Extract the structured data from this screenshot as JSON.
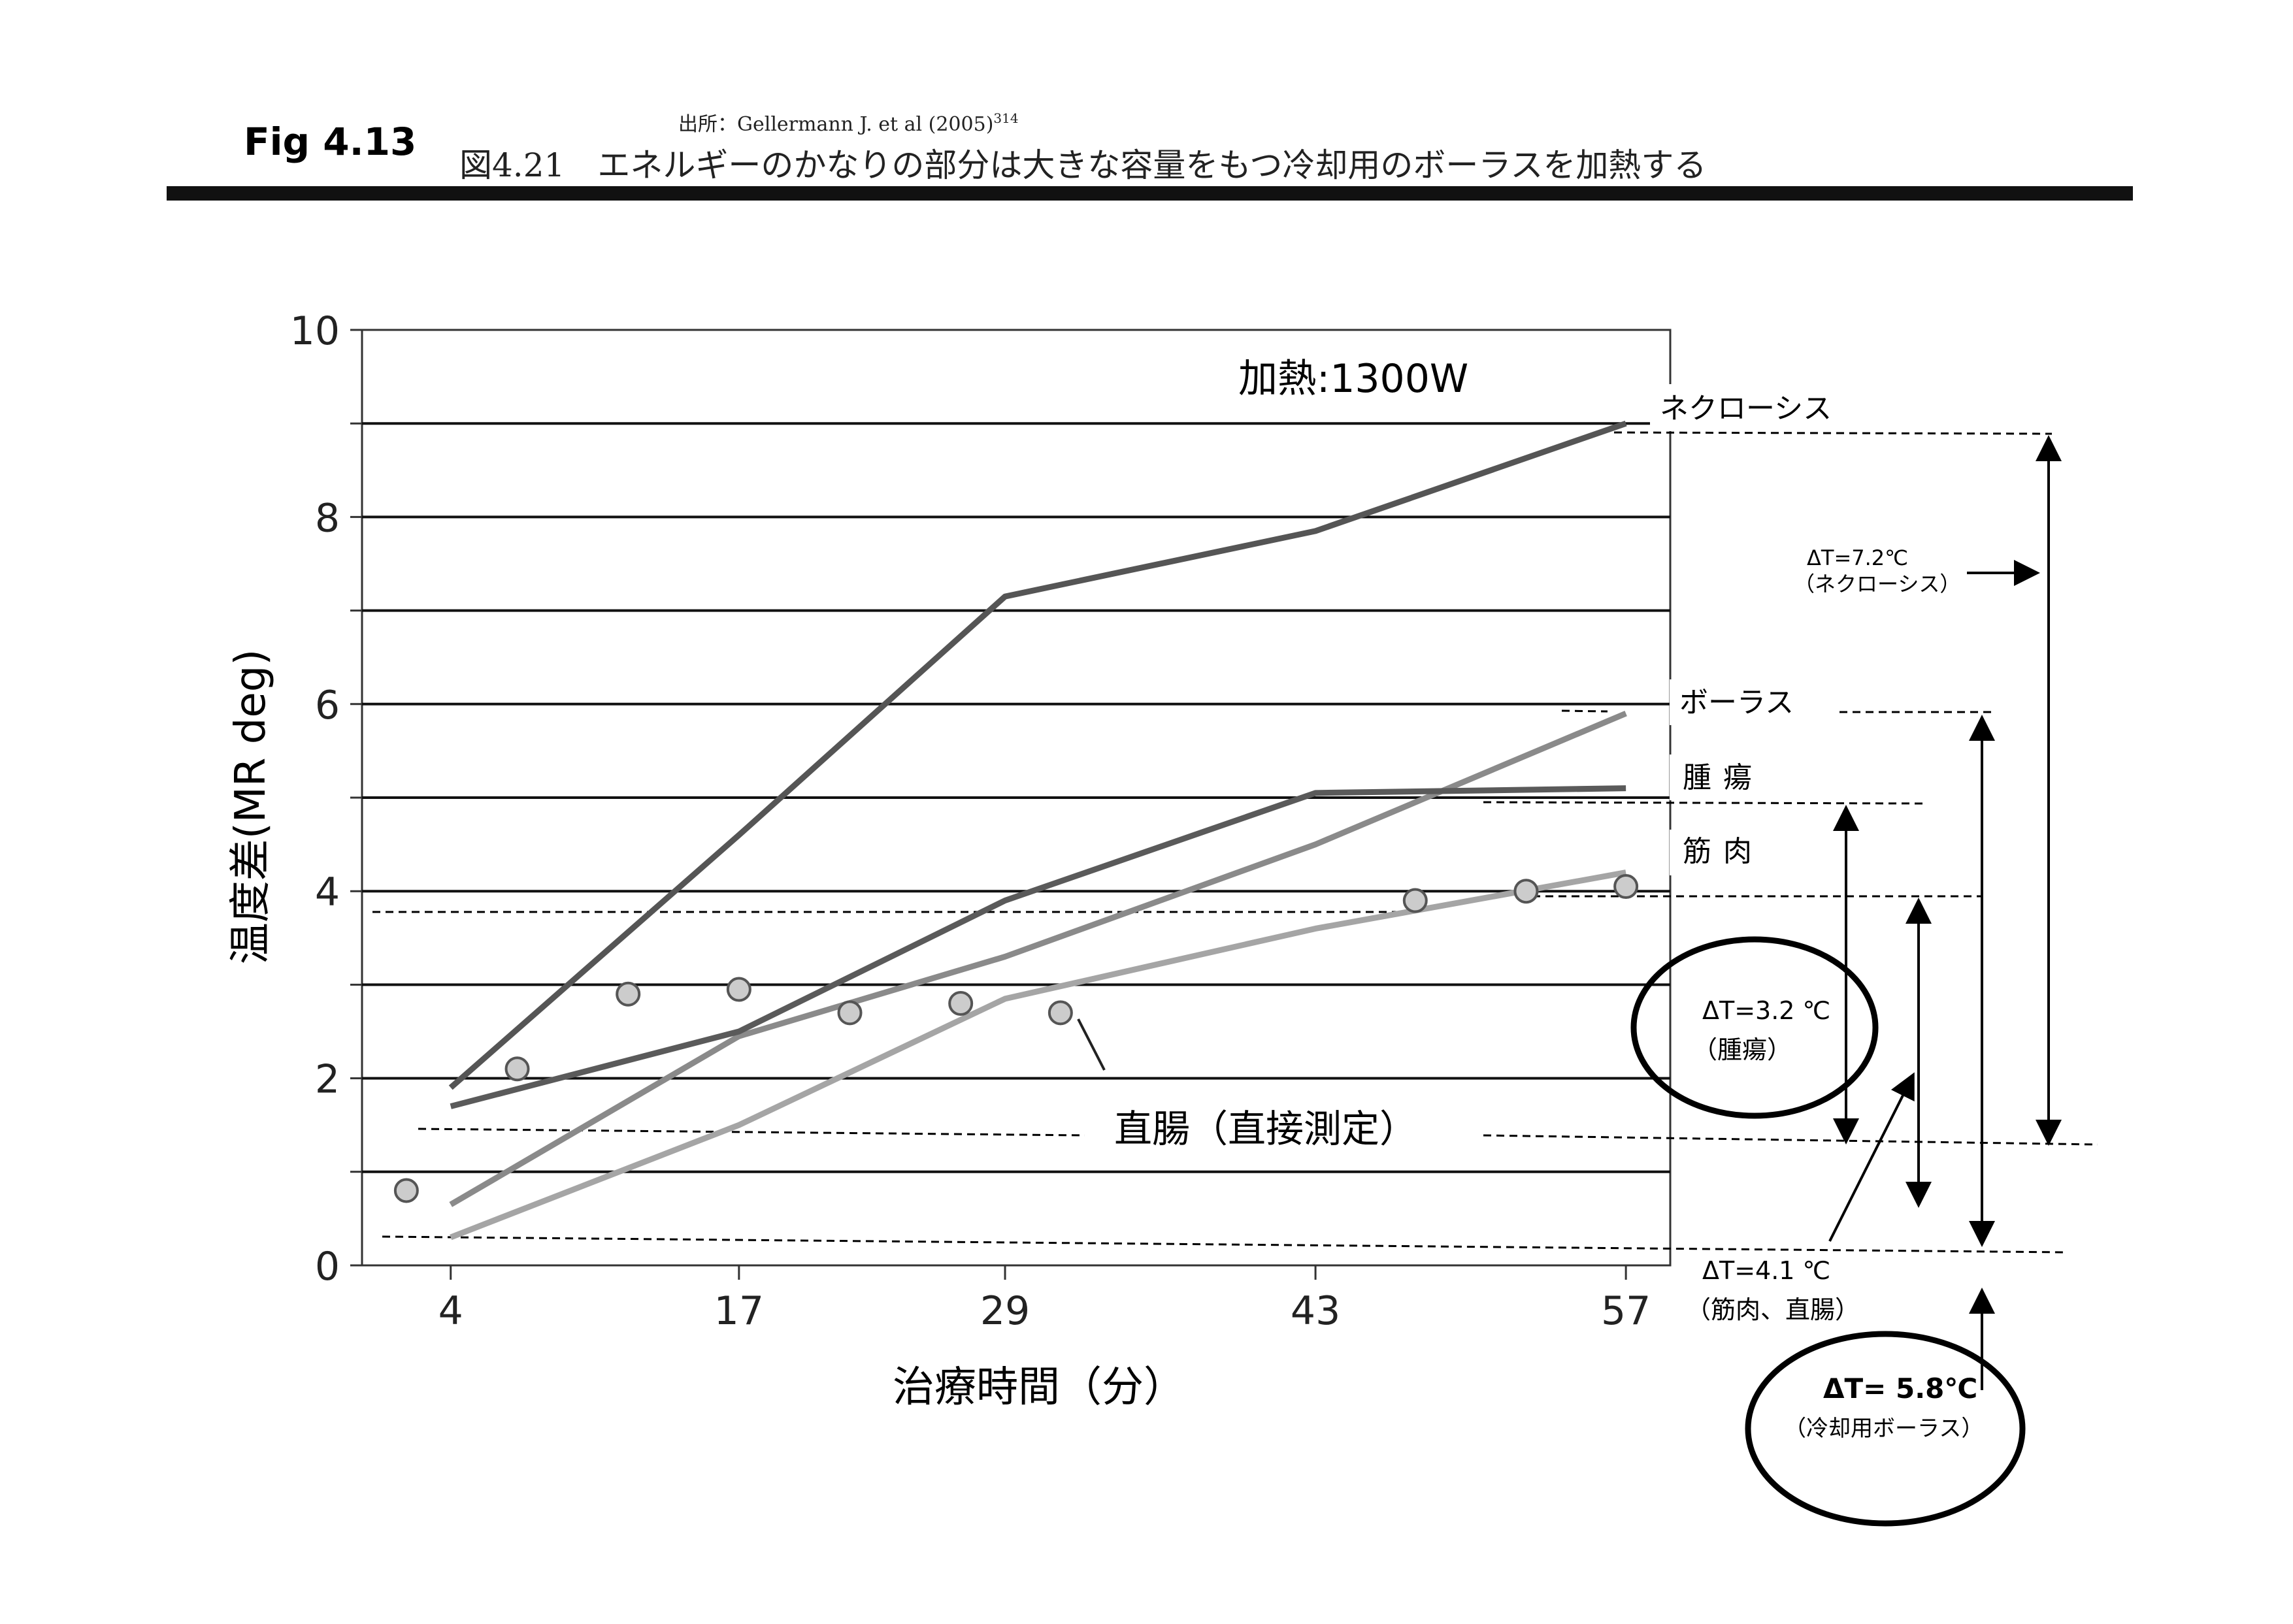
{
  "header": {
    "fig_label": "Fig 4.13",
    "source": "出所：Gellermann J. et al (2005)",
    "source_sup": "314",
    "caption": "図4.21　エネルギーのかなりの部分は大きな容量をもつ冷却用のボーラスを加熱する"
  },
  "chart_data": {
    "type": "line",
    "title": "加熱:1300W",
    "xlabel": "治療時間（分）",
    "ylabel": "温度差(MR deg)",
    "x_ticks": [
      4,
      17,
      29,
      43,
      57
    ],
    "y_ticks": [
      0,
      2,
      4,
      6,
      8,
      10
    ],
    "xlim": [
      0,
      59
    ],
    "ylim": [
      0,
      10
    ],
    "grid": "horizontal",
    "series": [
      {
        "name": "ネクローシス",
        "color": "#555555",
        "x": [
          4,
          17,
          29,
          43,
          57
        ],
        "y": [
          1.9,
          4.6,
          7.15,
          7.85,
          9.0
        ]
      },
      {
        "name": "ボーラス",
        "color": "#8a8a8a",
        "x": [
          4,
          17,
          29,
          43,
          57
        ],
        "y": [
          0.65,
          2.45,
          3.3,
          4.5,
          5.9
        ]
      },
      {
        "name": "腫瘍",
        "color": "#5a5a5a",
        "x": [
          4,
          17,
          29,
          43,
          57
        ],
        "y": [
          1.7,
          2.5,
          3.9,
          5.05,
          5.1
        ]
      },
      {
        "name": "筋肉",
        "color": "#a5a5a5",
        "x": [
          4,
          17,
          29,
          43,
          57
        ],
        "y": [
          0.3,
          1.5,
          2.85,
          3.6,
          4.2
        ]
      },
      {
        "name": "直腸（直接測定）",
        "color": "#cccccc",
        "type": "scatter",
        "x": [
          2,
          7,
          12,
          17,
          22,
          27,
          31.5,
          47.5,
          52.5,
          57
        ],
        "y": [
          0.8,
          2.1,
          2.9,
          2.95,
          2.7,
          2.8,
          2.7,
          3.9,
          4.0,
          4.05
        ]
      }
    ],
    "annotations": [
      {
        "text": "ΔT=7.2℃",
        "sub": "（ネクローシス）"
      },
      {
        "text": "ΔT=3.2 ℃",
        "sub": "（腫瘍）"
      },
      {
        "text": "ΔT=4.1 ℃",
        "sub": "（筋肉、直腸）"
      },
      {
        "text": "ΔT= 5.8℃",
        "sub": "（冷却用ボーラス）"
      }
    ]
  }
}
